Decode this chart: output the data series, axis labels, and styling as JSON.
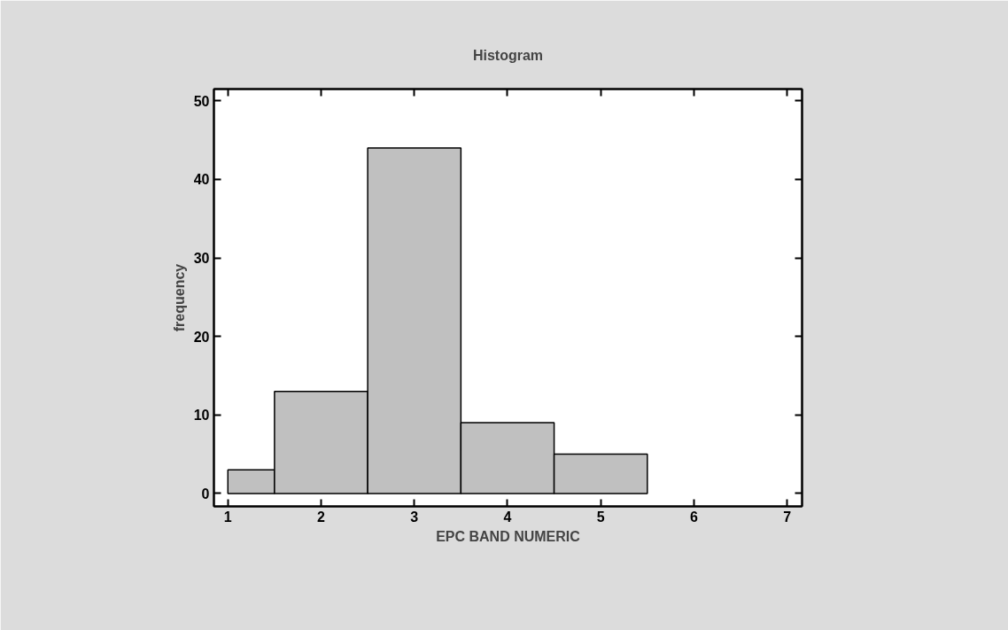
{
  "chart_data": {
    "type": "histogram",
    "title": "Histogram",
    "xlabel": "EPC BAND NUMERIC",
    "ylabel": "frequency",
    "bins": [
      1,
      1.5,
      2.5,
      3.5,
      4.5,
      5.5
    ],
    "values": [
      3,
      13,
      44,
      9,
      5
    ],
    "color": "#c0c0c0",
    "xlim": [
      0.85,
      7.16
    ],
    "ylim": [
      -1.65,
      51.5
    ],
    "xticks": [
      1,
      2,
      3,
      4,
      5,
      6,
      7
    ],
    "yticks": [
      0,
      10,
      20,
      30,
      40,
      50
    ],
    "grid": false
  }
}
